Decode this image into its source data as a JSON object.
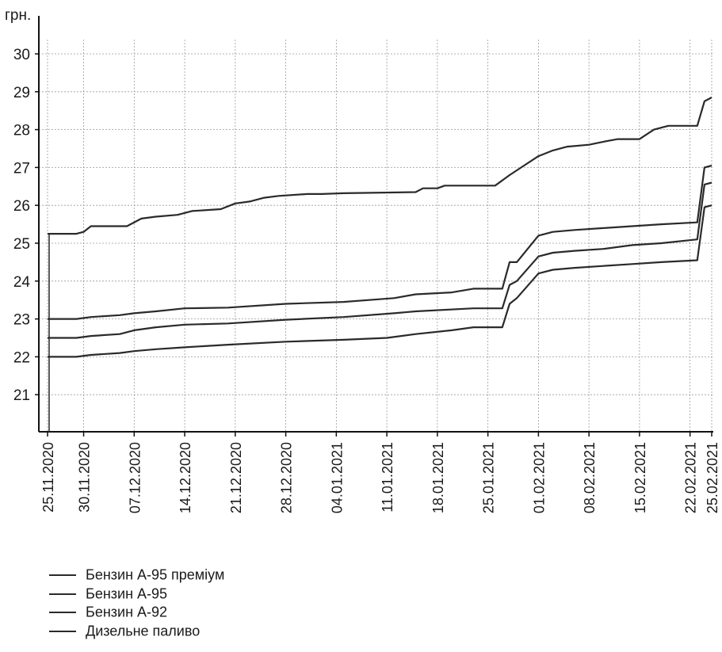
{
  "chart_data": {
    "type": "line",
    "ylabel": "грн.",
    "ylim": [
      20,
      30
    ],
    "yticks": [
      21,
      22,
      23,
      24,
      25,
      26,
      27,
      28,
      29,
      30
    ],
    "xlim": [
      "2020-11-25",
      "2021-02-25"
    ],
    "xticks": [
      "25.11.2020",
      "30.11.2020",
      "07.12.2020",
      "14.12.2020",
      "21.12.2020",
      "28.12.2020",
      "04.01.2021",
      "11.01.2021",
      "18.01.2021",
      "25.01.2021",
      "01.02.2021",
      "08.02.2021",
      "15.02.2021",
      "22.02.2021",
      "25.02.2021"
    ],
    "grid": true,
    "legend_position": "bottom-left",
    "series": [
      {
        "name": "Бензин А-95 преміум",
        "points": [
          [
            "2020-11-25",
            25.25
          ],
          [
            "2020-11-29",
            25.25
          ],
          [
            "2020-11-30",
            25.3
          ],
          [
            "2020-12-01",
            25.45
          ],
          [
            "2020-12-06",
            25.45
          ],
          [
            "2020-12-08",
            25.65
          ],
          [
            "2020-12-10",
            25.7
          ],
          [
            "2020-12-13",
            25.75
          ],
          [
            "2020-12-15",
            25.85
          ],
          [
            "2020-12-19",
            25.9
          ],
          [
            "2020-12-21",
            26.05
          ],
          [
            "2020-12-23",
            26.1
          ],
          [
            "2020-12-25",
            26.2
          ],
          [
            "2020-12-27",
            26.25
          ],
          [
            "2020-12-31",
            26.3
          ],
          [
            "2021-01-02",
            26.3
          ],
          [
            "2021-01-05",
            26.32
          ],
          [
            "2021-01-15",
            26.35
          ],
          [
            "2021-01-16",
            26.45
          ],
          [
            "2021-01-18",
            26.45
          ],
          [
            "2021-01-19",
            26.52
          ],
          [
            "2021-01-24",
            26.52
          ],
          [
            "2021-01-26",
            26.52
          ],
          [
            "2021-01-28",
            26.8
          ],
          [
            "2021-01-30",
            27.05
          ],
          [
            "2021-02-01",
            27.3
          ],
          [
            "2021-02-03",
            27.45
          ],
          [
            "2021-02-05",
            27.55
          ],
          [
            "2021-02-08",
            27.6
          ],
          [
            "2021-02-10",
            27.68
          ],
          [
            "2021-02-12",
            27.75
          ],
          [
            "2021-02-15",
            27.75
          ],
          [
            "2021-02-17",
            28.0
          ],
          [
            "2021-02-19",
            28.1
          ],
          [
            "2021-02-23",
            28.1
          ],
          [
            "2021-02-24",
            28.75
          ],
          [
            "2021-02-25",
            28.85
          ]
        ]
      },
      {
        "name": "Бензин А-95",
        "points": [
          [
            "2020-11-25",
            23.0
          ],
          [
            "2020-11-29",
            23.0
          ],
          [
            "2020-12-01",
            23.05
          ],
          [
            "2020-12-05",
            23.1
          ],
          [
            "2020-12-07",
            23.15
          ],
          [
            "2020-12-10",
            23.2
          ],
          [
            "2020-12-14",
            23.28
          ],
          [
            "2020-12-20",
            23.3
          ],
          [
            "2020-12-28",
            23.4
          ],
          [
            "2021-01-05",
            23.45
          ],
          [
            "2021-01-12",
            23.55
          ],
          [
            "2021-01-15",
            23.65
          ],
          [
            "2021-01-20",
            23.7
          ],
          [
            "2021-01-23",
            23.8
          ],
          [
            "2021-01-27",
            23.8
          ],
          [
            "2021-01-28",
            24.5
          ],
          [
            "2021-01-29",
            24.5
          ],
          [
            "2021-02-01",
            25.2
          ],
          [
            "2021-02-03",
            25.3
          ],
          [
            "2021-02-06",
            25.35
          ],
          [
            "2021-02-10",
            25.4
          ],
          [
            "2021-02-14",
            25.45
          ],
          [
            "2021-02-18",
            25.5
          ],
          [
            "2021-02-23",
            25.55
          ],
          [
            "2021-02-24",
            27.0
          ],
          [
            "2021-02-25",
            27.05
          ]
        ]
      },
      {
        "name": "Бензин А-92",
        "points": [
          [
            "2020-11-25",
            22.5
          ],
          [
            "2020-11-29",
            22.5
          ],
          [
            "2020-12-01",
            22.55
          ],
          [
            "2020-12-05",
            22.6
          ],
          [
            "2020-12-07",
            22.7
          ],
          [
            "2020-12-10",
            22.78
          ],
          [
            "2020-12-14",
            22.85
          ],
          [
            "2020-12-20",
            22.88
          ],
          [
            "2020-12-28",
            22.98
          ],
          [
            "2021-01-05",
            23.05
          ],
          [
            "2021-01-12",
            23.15
          ],
          [
            "2021-01-15",
            23.2
          ],
          [
            "2021-01-23",
            23.28
          ],
          [
            "2021-01-27",
            23.28
          ],
          [
            "2021-01-28",
            23.9
          ],
          [
            "2021-01-29",
            24.0
          ],
          [
            "2021-02-01",
            24.65
          ],
          [
            "2021-02-03",
            24.75
          ],
          [
            "2021-02-06",
            24.8
          ],
          [
            "2021-02-10",
            24.85
          ],
          [
            "2021-02-14",
            24.95
          ],
          [
            "2021-02-18",
            25.0
          ],
          [
            "2021-02-23",
            25.1
          ],
          [
            "2021-02-24",
            26.55
          ],
          [
            "2021-02-25",
            26.6
          ]
        ]
      },
      {
        "name": "Дизельне паливо",
        "points": [
          [
            "2020-11-25",
            22.0
          ],
          [
            "2020-11-29",
            22.0
          ],
          [
            "2020-12-01",
            22.05
          ],
          [
            "2020-12-05",
            22.1
          ],
          [
            "2020-12-07",
            22.15
          ],
          [
            "2020-12-10",
            22.2
          ],
          [
            "2020-12-14",
            22.25
          ],
          [
            "2020-12-20",
            22.32
          ],
          [
            "2020-12-28",
            22.4
          ],
          [
            "2021-01-05",
            22.45
          ],
          [
            "2021-01-11",
            22.5
          ],
          [
            "2021-01-15",
            22.6
          ],
          [
            "2021-01-20",
            22.7
          ],
          [
            "2021-01-23",
            22.78
          ],
          [
            "2021-01-27",
            22.78
          ],
          [
            "2021-01-28",
            23.4
          ],
          [
            "2021-01-29",
            23.55
          ],
          [
            "2021-02-01",
            24.2
          ],
          [
            "2021-02-03",
            24.3
          ],
          [
            "2021-02-06",
            24.35
          ],
          [
            "2021-02-10",
            24.4
          ],
          [
            "2021-02-14",
            24.45
          ],
          [
            "2021-02-18",
            24.5
          ],
          [
            "2021-02-23",
            24.55
          ],
          [
            "2021-02-24",
            25.95
          ],
          [
            "2021-02-25",
            26.0
          ]
        ]
      }
    ]
  },
  "colors": {
    "line": "#2a2a2a",
    "grid": "#9a9a9a",
    "axis": "#111111"
  }
}
